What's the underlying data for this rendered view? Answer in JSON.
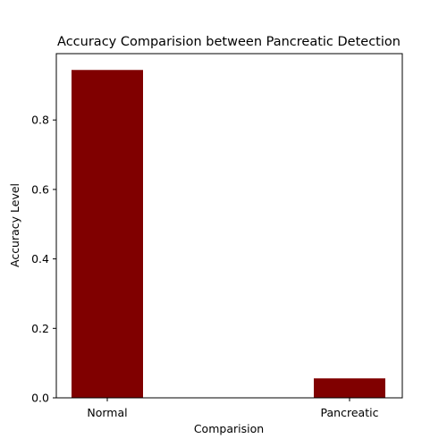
{
  "chart_data": {
    "type": "bar",
    "title": "Accuracy Comparision between Pancreatic Detection",
    "xlabel": "Comparision",
    "ylabel": "Accuracy Level",
    "categories": [
      "Normal",
      "Pancreatic"
    ],
    "values": [
      0.944,
      0.056
    ],
    "ylim": [
      0,
      0.991
    ],
    "yticks": [
      "0.0",
      "0.2",
      "0.4",
      "0.6",
      "0.8"
    ],
    "bar_color": "#800000",
    "grid": false
  }
}
